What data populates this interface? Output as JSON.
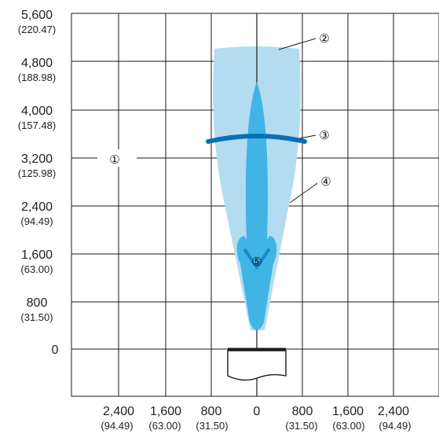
{
  "colors": {
    "outer_field": "#b3dcf0",
    "inner_field": "#40b4e5",
    "ring": "#0c6fb3",
    "grid": "#1a1a1a"
  },
  "y_axis": {
    "ticks": [
      {
        "main": "5,600",
        "sub": "(220.47)"
      },
      {
        "main": "4,800",
        "sub": "(188.98)"
      },
      {
        "main": "4,000",
        "sub": "(157.48)"
      },
      {
        "main": "3,200",
        "sub": "(125.98)"
      },
      {
        "main": "2,400",
        "sub": "(94.49)"
      },
      {
        "main": "1,600",
        "sub": "(63.00)"
      },
      {
        "main": "800",
        "sub": "(31.50)"
      },
      {
        "main": "0",
        "sub": ""
      }
    ]
  },
  "x_axis": {
    "ticks": [
      {
        "main": "2,400",
        "sub": "(94.49)"
      },
      {
        "main": "1,600",
        "sub": "(63.00)"
      },
      {
        "main": "800",
        "sub": "(31.50)"
      },
      {
        "main": "0",
        "sub": ""
      },
      {
        "main": "800",
        "sub": "(31.50)"
      },
      {
        "main": "1,600",
        "sub": "(63.00)"
      },
      {
        "main": "2,400",
        "sub": "(94.49)"
      }
    ]
  },
  "callouts": {
    "c1": "①",
    "c2": "②",
    "c3": "③",
    "c4": "④",
    "c5": "⑤"
  }
}
